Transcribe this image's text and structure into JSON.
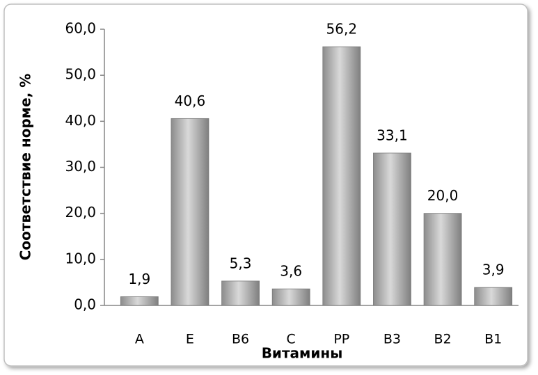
{
  "chart_data": {
    "type": "bar",
    "x_label": "Витамины",
    "y_label": "Соответствие норме, %",
    "categories": [
      "A",
      "E",
      "B6",
      "C",
      "PP",
      "B3",
      "B2",
      "B1"
    ],
    "values": [
      1.9,
      40.6,
      5.3,
      3.6,
      56.2,
      33.1,
      20.0,
      3.9
    ],
    "value_labels": [
      "1,9",
      "40,6",
      "5,3",
      "3,6",
      "56,2",
      "33,1",
      "20,0",
      "3,9"
    ],
    "color": "#a6a6a6",
    "ylim": [
      0,
      60
    ],
    "yticks": [
      {
        "value": 0,
        "label": "0,0"
      },
      {
        "value": 10,
        "label": "10,0"
      },
      {
        "value": 20,
        "label": "20,0"
      },
      {
        "value": 30,
        "label": "30,0"
      },
      {
        "value": 40,
        "label": "40,0"
      },
      {
        "value": 50,
        "label": "50,0"
      },
      {
        "value": 60,
        "label": "60,0"
      }
    ],
    "grid": false
  }
}
